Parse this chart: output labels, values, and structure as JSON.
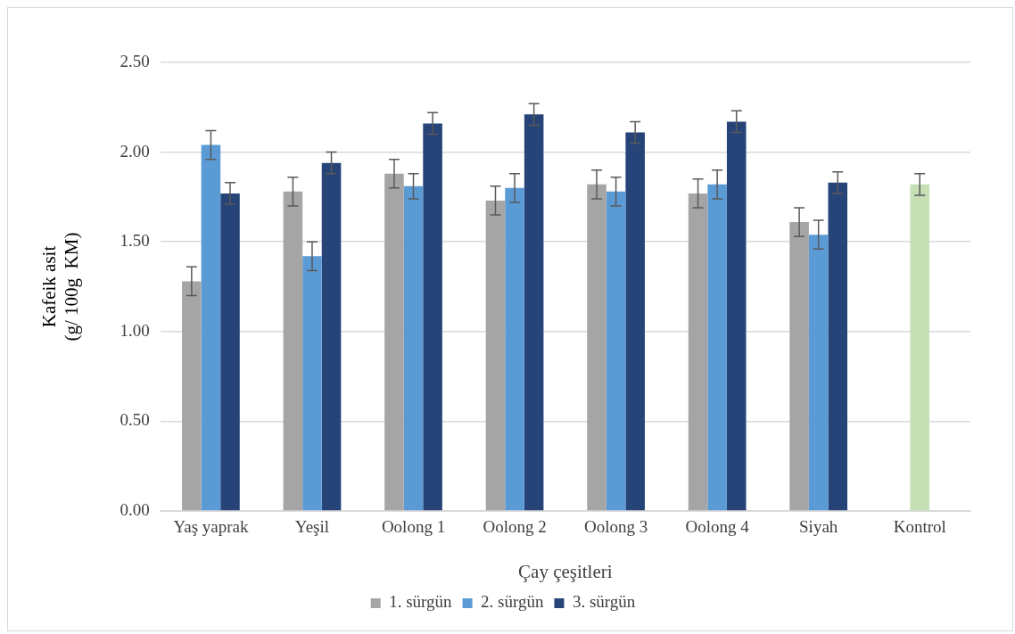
{
  "chart_data": {
    "type": "bar",
    "xlabel": "Çay çeşitleri",
    "ylabel": "Kafeik asit\n(g/ 100g  KM)",
    "categories": [
      "Yaş yaprak",
      "Yeşil",
      "Oolong 1",
      "Oolong 2",
      "Oolong 3",
      "Oolong 4",
      "Siyah",
      "Kontrol"
    ],
    "series": [
      {
        "name": "1. sürgün",
        "color": "#a5a5a5",
        "values": [
          1.28,
          1.78,
          1.88,
          1.73,
          1.82,
          1.77,
          1.61,
          null
        ],
        "errors": [
          0.08,
          0.08,
          0.08,
          0.08,
          0.08,
          0.08,
          0.08,
          null
        ]
      },
      {
        "name": "2. sürgün",
        "color": "#5b9bd5",
        "colors": [
          "#5b9bd5",
          "#5b9bd5",
          "#5b9bd5",
          "#5b9bd5",
          "#5b9bd5",
          "#5b9bd5",
          "#5b9bd5",
          "#c5e0b4"
        ],
        "values": [
          2.04,
          1.42,
          1.81,
          1.8,
          1.78,
          1.82,
          1.54,
          1.82
        ],
        "errors": [
          0.08,
          0.08,
          0.07,
          0.08,
          0.08,
          0.08,
          0.08,
          0.06
        ]
      },
      {
        "name": "3. sürgün",
        "color": "#264478",
        "values": [
          1.77,
          1.94,
          2.16,
          2.21,
          2.11,
          2.17,
          1.83,
          null
        ],
        "errors": [
          0.06,
          0.06,
          0.06,
          0.06,
          0.06,
          0.06,
          0.06,
          null
        ]
      }
    ],
    "ylim": [
      0,
      2.5
    ],
    "yticks": [
      {
        "value": 0,
        "label": "0.00"
      },
      {
        "value": 0.5,
        "label": "0.50"
      },
      {
        "value": 1,
        "label": "1.00"
      },
      {
        "value": 1.5,
        "label": "1.50"
      },
      {
        "value": 2,
        "label": "2.00"
      },
      {
        "value": 2.5,
        "label": "2.50"
      }
    ],
    "grid": "y",
    "legend": "bottom"
  }
}
